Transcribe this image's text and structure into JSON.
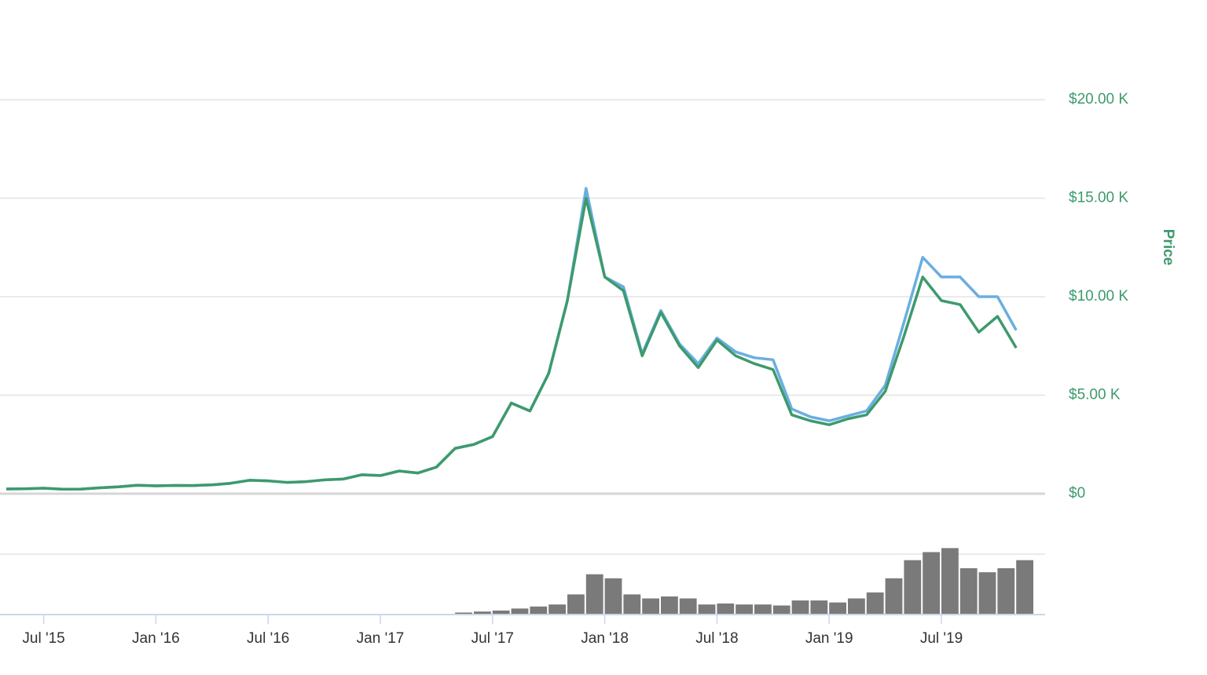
{
  "chart_data": [
    {
      "type": "line",
      "xlim": [
        "2015-05",
        "2019-12"
      ],
      "ylim": [
        0,
        22000
      ],
      "yticks": [
        {
          "value": 0,
          "label": "$0"
        },
        {
          "value": 5000,
          "label": "$5.00 K"
        },
        {
          "value": 10000,
          "label": "$10.00 K"
        },
        {
          "value": 15000,
          "label": "$15.00 K"
        },
        {
          "value": 20000,
          "label": "$20.00 K"
        }
      ],
      "y_label": "Price",
      "grid": true,
      "x": [
        "2015-05",
        "2015-06",
        "2015-07",
        "2015-08",
        "2015-09",
        "2015-10",
        "2015-11",
        "2015-12",
        "2016-01",
        "2016-02",
        "2016-03",
        "2016-04",
        "2016-05",
        "2016-06",
        "2016-07",
        "2016-08",
        "2016-09",
        "2016-10",
        "2016-11",
        "2016-12",
        "2017-01",
        "2017-02",
        "2017-03",
        "2017-04",
        "2017-05",
        "2017-06",
        "2017-07",
        "2017-08",
        "2017-09",
        "2017-10",
        "2017-11",
        "2017-12",
        "2018-01",
        "2018-02",
        "2018-03",
        "2018-04",
        "2018-05",
        "2018-06",
        "2018-07",
        "2018-08",
        "2018-09",
        "2018-10",
        "2018-11",
        "2018-12",
        "2019-01",
        "2019-02",
        "2019-03",
        "2019-04",
        "2019-05",
        "2019-06",
        "2019-07",
        "2019-08",
        "2019-09",
        "2019-10",
        "2019-11"
      ],
      "series": [
        {
          "color": "#6aaee0",
          "values": [
            240,
            250,
            280,
            230,
            235,
            300,
            350,
            430,
            400,
            420,
            415,
            450,
            530,
            680,
            650,
            575,
            610,
            700,
            740,
            960,
            920,
            1150,
            1050,
            1350,
            2300,
            2500,
            2900,
            4600,
            4200,
            6100,
            9800,
            15500,
            11000,
            10500,
            7100,
            9300,
            7600,
            6600,
            7900,
            7200,
            6900,
            6800,
            4300,
            3900,
            3700,
            3950,
            4200,
            5500,
            8700,
            12000,
            11000,
            11000,
            10000,
            10000,
            8300
          ]
        },
        {
          "color": "#3d9a6c",
          "values": [
            240,
            250,
            280,
            230,
            235,
            300,
            350,
            430,
            400,
            420,
            415,
            450,
            530,
            680,
            650,
            575,
            610,
            700,
            740,
            960,
            920,
            1150,
            1050,
            1350,
            2300,
            2500,
            2900,
            4600,
            4200,
            6100,
            9800,
            15000,
            11000,
            10300,
            7000,
            9200,
            7500,
            6400,
            7800,
            7000,
            6600,
            6300,
            4000,
            3700,
            3500,
            3800,
            4000,
            5200,
            8000,
            11000,
            9800,
            9600,
            8200,
            9000,
            7400
          ]
        }
      ]
    },
    {
      "type": "bar",
      "xlim": [
        "2015-05",
        "2019-12"
      ],
      "xticks": [
        {
          "value": "2015-07",
          "label": "Jul '15"
        },
        {
          "value": "2016-01",
          "label": "Jan '16"
        },
        {
          "value": "2016-07",
          "label": "Jul '16"
        },
        {
          "value": "2017-01",
          "label": "Jan '17"
        },
        {
          "value": "2017-07",
          "label": "Jul '17"
        },
        {
          "value": "2018-01",
          "label": "Jan '18"
        },
        {
          "value": "2018-07",
          "label": "Jul '18"
        },
        {
          "value": "2019-01",
          "label": "Jan '19"
        },
        {
          "value": "2019-07",
          "label": "Jul '19"
        }
      ],
      "ylim": [
        0,
        60
      ],
      "yticks": [
        30
      ],
      "grid": true,
      "color": "#7a7a7a",
      "x": [
        "2017-05",
        "2017-06",
        "2017-07",
        "2017-08",
        "2017-09",
        "2017-10",
        "2017-11",
        "2017-12",
        "2018-01",
        "2018-02",
        "2018-03",
        "2018-04",
        "2018-05",
        "2018-06",
        "2018-07",
        "2018-08",
        "2018-09",
        "2018-10",
        "2018-11",
        "2018-12",
        "2019-01",
        "2019-02",
        "2019-03",
        "2019-04",
        "2019-05",
        "2019-06",
        "2019-07",
        "2019-08",
        "2019-09",
        "2019-10",
        "2019-11"
      ],
      "values": [
        1,
        1.5,
        2,
        3,
        4,
        5,
        10,
        20,
        18,
        10,
        8,
        9,
        8,
        5,
        5.5,
        5,
        5,
        4.5,
        7,
        7,
        6,
        8,
        11,
        18,
        27,
        31,
        33,
        23,
        21,
        23,
        27
      ]
    }
  ]
}
